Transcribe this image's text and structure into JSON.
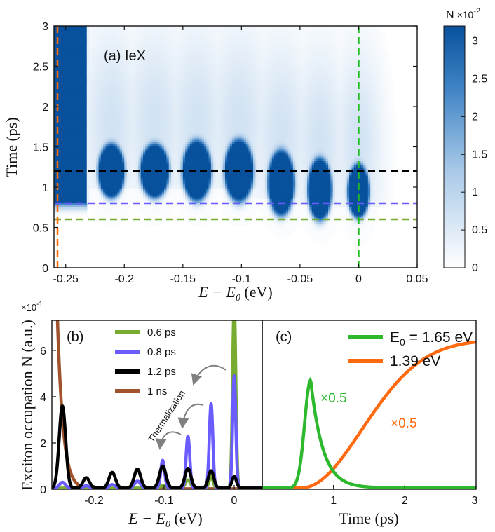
{
  "chart_data": [
    {
      "panel": "(a)",
      "type": "heatmap",
      "title": "(a) IeX",
      "xlabel": "E − E0 (eV)",
      "ylabel": "Time (ps)",
      "xlim": [
        -0.26,
        0.05
      ],
      "ylim": [
        0,
        3
      ],
      "xticks": [
        "-0.25",
        "-0.2",
        "-0.15",
        "-0.1",
        "-0.05",
        "0",
        "0.05"
      ],
      "xtick_values": [
        -0.25,
        -0.2,
        -0.15,
        -0.1,
        -0.05,
        0,
        0.05
      ],
      "yticks": [
        "0",
        "0.5",
        "1",
        "1.5",
        "2",
        "2.5",
        "3"
      ],
      "ytick_values": [
        0,
        0.5,
        1,
        1.5,
        2,
        2.5,
        3
      ],
      "colorbar": {
        "label": "N",
        "multiplier": "×10",
        "exponent": "-2",
        "ticks": [
          "0",
          "0.5",
          "1",
          "1.5",
          "2",
          "2.5",
          "3"
        ],
        "tick_values": [
          0,
          0.5,
          1,
          1.5,
          2,
          2.5,
          3
        ],
        "range": [
          0,
          3.2
        ],
        "color_low": "#ffffff",
        "color_high": "#08519c"
      },
      "peaks": [
        {
          "e": -0.211,
          "t_center": 1.2,
          "t_half": 0.33,
          "e_half": 0.011
        },
        {
          "e": -0.174,
          "t_center": 1.2,
          "t_half": 0.33,
          "e_half": 0.012
        },
        {
          "e": -0.138,
          "t_center": 1.2,
          "t_half": 0.37,
          "e_half": 0.012
        },
        {
          "e": -0.102,
          "t_center": 1.2,
          "t_half": 0.38,
          "e_half": 0.012
        },
        {
          "e": -0.066,
          "t_center": 1.05,
          "t_half": 0.4,
          "e_half": 0.011
        },
        {
          "e": -0.033,
          "t_center": 0.97,
          "t_half": 0.38,
          "e_half": 0.01
        },
        {
          "e": 0.0,
          "t_center": 0.95,
          "t_half": 0.33,
          "e_half": 0.009
        }
      ],
      "dashed_lines": [
        {
          "orientation": "horizontal",
          "value": 1.2,
          "color": "#000000"
        },
        {
          "orientation": "horizontal",
          "value": 0.8,
          "color": "#6a5cff"
        },
        {
          "orientation": "horizontal",
          "value": 0.6,
          "color": "#77ac30"
        },
        {
          "orientation": "vertical",
          "value": 0.0,
          "color": "#1fbf1f"
        },
        {
          "orientation": "vertical",
          "value": -0.257,
          "color": "#ff6a00"
        }
      ]
    },
    {
      "panel": "(b)",
      "type": "line",
      "xlabel": "E − E0 (eV)",
      "ylabel": "Exciton occupation N (a.u.)",
      "y_multiplier": "×10",
      "y_exponent": "-1",
      "xlim": [
        -0.26,
        0.04
      ],
      "ylim": [
        0,
        7.3
      ],
      "xticks": [
        "-0.2",
        "-0.1",
        "0"
      ],
      "xtick_values": [
        -0.2,
        -0.1,
        0
      ],
      "yticks": [
        "0",
        "2",
        "4",
        "6"
      ],
      "ytick_values": [
        0,
        2,
        4,
        6
      ],
      "peak_positions": [
        -0.245,
        -0.211,
        -0.174,
        -0.138,
        -0.102,
        -0.066,
        -0.033,
        0.0
      ],
      "series": [
        {
          "name": "0.6 ps",
          "color": "#77ac30",
          "amplitudes": [
            0,
            0,
            0,
            0,
            0.1,
            0.35,
            0.5,
            8.0
          ],
          "widths": [
            0.006,
            0.006,
            0.006,
            0.006,
            0.006,
            0.005,
            0.004,
            0.0032
          ]
        },
        {
          "name": "0.8 ps",
          "color": "#6a5cff",
          "amplitudes": [
            0.25,
            0.1,
            0.15,
            0.3,
            1.2,
            2.25,
            3.65,
            4.85
          ],
          "widths": [
            0.006,
            0.006,
            0.006,
            0.006,
            0.004,
            0.0037,
            0.0035,
            0.0032
          ]
        },
        {
          "name": "1.2 ps",
          "color": "#000000",
          "amplitudes": [
            3.55,
            0.45,
            0.68,
            0.82,
            0.95,
            0.85,
            0.75,
            0.5
          ],
          "widths": [
            0.0065,
            0.0065,
            0.0065,
            0.0065,
            0.0065,
            0.006,
            0.0055,
            0.0045
          ]
        },
        {
          "name": "1 ns",
          "color": "#a0522d",
          "shape": "decay",
          "start": 7.3,
          "x_start": -0.252,
          "decay": 0.008
        }
      ],
      "annotation": "Thermalization"
    },
    {
      "panel": "(c)",
      "type": "line",
      "xlabel": "Time (ps)",
      "xlim": [
        0,
        3
      ],
      "ylim": [
        0,
        7.3
      ],
      "xticks": [
        "1",
        "2",
        "3"
      ],
      "xtick_values": [
        1,
        2,
        3
      ],
      "series": [
        {
          "name": "E0 = 1.65 eV",
          "color": "#2db82d",
          "peak_time": 0.68,
          "peak": 4.65,
          "rise": 0.1,
          "decay": 0.17,
          "scale_label": "×0.5"
        },
        {
          "name": "1.39 eV",
          "color": "#ff6a10",
          "onset": 0.55,
          "amplitude": 6.4,
          "tau": 1.2,
          "scale_label": "×0.5"
        }
      ]
    }
  ],
  "labels": {
    "panel_a": "(a) IeX",
    "panel_b": "(b)",
    "panel_c": "(c)",
    "a_xlabel_main": "E − E",
    "a_xlabel_sub": "0",
    "a_xlabel_unit": " (eV)",
    "a_ylabel": "Time (ps)",
    "b_ylabel": "Exciton occupation N (a.u.)",
    "b_multiplier": "×10",
    "b_exponent": "-1",
    "c_xlabel": "Time (ps)",
    "cbar_label": "N",
    "cbar_multiplier": "×10",
    "cbar_exponent": "-2",
    "legend_c_1_main": "E",
    "legend_c_1_sub": "0",
    "legend_c_1_rest": " = 1.65 eV",
    "legend_c_2": "1.39 eV",
    "scale_green": "×0.5",
    "scale_orange": "×0.5",
    "thermalization": "Thermalization"
  }
}
